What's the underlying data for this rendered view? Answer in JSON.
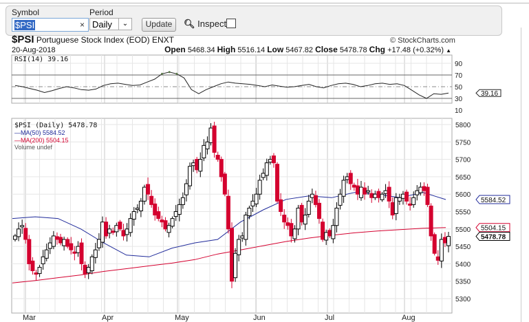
{
  "toolbar": {
    "symbol_label": "Symbol",
    "symbol_value": "$PSI",
    "clear": "×",
    "period_label": "Period",
    "period_value": "Daily",
    "update": "Update",
    "inspect": "Inspect"
  },
  "header": {
    "ticker": "$PSI",
    "name": "Portuguese Stock Index (EOD)",
    "exchange": "ENXT",
    "date": "20-Aug-2018",
    "credit": "© StockCharts.com",
    "open_label": "Open",
    "open": "5468.34",
    "high_label": "High",
    "high": "5516.14",
    "low_label": "Low",
    "low": "5467.82",
    "close_label": "Close",
    "close": "5478.78",
    "chg_label": "Chg",
    "chg": "+17.48 (+0.32%)"
  },
  "rsi": {
    "legend": "RSI(14) 39.16",
    "value_tag": "39.16",
    "ticks": [
      "90",
      "70",
      "50",
      "30",
      "10"
    ],
    "color": "#5a7a4a"
  },
  "price": {
    "legend": "$PSI (Daily) 5478.78",
    "ma50_legend": "MA(50) 5584.52",
    "ma200_legend": "MA(200) 5504.15",
    "volume_legend": "Volume undef",
    "ma50_tag": "5584.52",
    "ma200_tag": "5504.15",
    "close_tag": "5478.78",
    "ticks": [
      "5800",
      "5750",
      "5700",
      "5650",
      "5600",
      "5550",
      "5500",
      "5450",
      "5400",
      "5350",
      "5300"
    ],
    "months": [
      "Mar",
      "Apr",
      "May",
      "Jun",
      "Jul",
      "Aug"
    ],
    "up_color": "#000000",
    "down_color": "#d4002f",
    "ma50_color": "#1f2a9a",
    "ma200_color": "#d4002f"
  },
  "chart_data": {
    "type": "candlestick",
    "ylim": [
      5275,
      5820
    ],
    "closes": [
      5480,
      5500,
      5510,
      5470,
      5400,
      5380,
      5370,
      5390,
      5420,
      5440,
      5460,
      5480,
      5470,
      5460,
      5470,
      5450,
      5440,
      5430,
      5450,
      5400,
      5370,
      5390,
      5420,
      5440,
      5470,
      5520,
      5480,
      5500,
      5490,
      5510,
      5500,
      5480,
      5500,
      5530,
      5550,
      5560,
      5580,
      5620,
      5600,
      5570,
      5540,
      5530,
      5520,
      5500,
      5510,
      5530,
      5550,
      5570,
      5590,
      5630,
      5680,
      5690,
      5670,
      5700,
      5740,
      5750,
      5790,
      5720,
      5700,
      5650,
      5600,
      5500,
      5350,
      5430,
      5470,
      5480,
      5540,
      5560,
      5580,
      5600,
      5640,
      5660,
      5690,
      5700,
      5690,
      5580,
      5550,
      5520,
      5510,
      5480,
      5500,
      5560,
      5520,
      5540,
      5580,
      5600,
      5570,
      5530,
      5470,
      5490,
      5480,
      5510,
      5560,
      5600,
      5640,
      5650,
      5630,
      5620,
      5600,
      5620,
      5600,
      5610,
      5590,
      5600,
      5590,
      5600,
      5610,
      5580,
      5540,
      5590,
      5590,
      5600,
      5580,
      5570,
      5590,
      5610,
      5620,
      5610,
      5570,
      5480,
      5430,
      5410,
      5470,
      5460,
      5478.78
    ],
    "ma50": [
      5530,
      5535,
      5530,
      5500,
      5460,
      5425,
      5420,
      5445,
      5460,
      5470,
      5520,
      5555,
      5585,
      5595,
      5590,
      5605,
      5600,
      5590,
      5605,
      5584.52
    ],
    "ma200": [
      5345,
      5352,
      5360,
      5368,
      5378,
      5386,
      5394,
      5402,
      5412,
      5428,
      5440,
      5452,
      5464,
      5474,
      5482,
      5489,
      5494,
      5498,
      5502,
      5504.15
    ],
    "rsi": [
      52,
      50,
      47,
      44,
      40,
      43,
      47,
      50,
      48,
      45,
      44,
      46,
      52,
      55,
      56,
      54,
      52,
      53,
      58,
      63,
      72,
      75,
      72,
      65,
      45,
      38,
      45,
      50,
      55,
      58,
      56,
      55,
      54,
      52,
      50,
      53,
      51,
      49,
      50,
      52,
      54,
      50,
      48,
      52,
      55,
      56,
      54,
      50,
      52,
      55,
      56,
      54,
      55,
      52,
      44,
      36,
      30,
      38,
      37,
      39.16
    ]
  }
}
